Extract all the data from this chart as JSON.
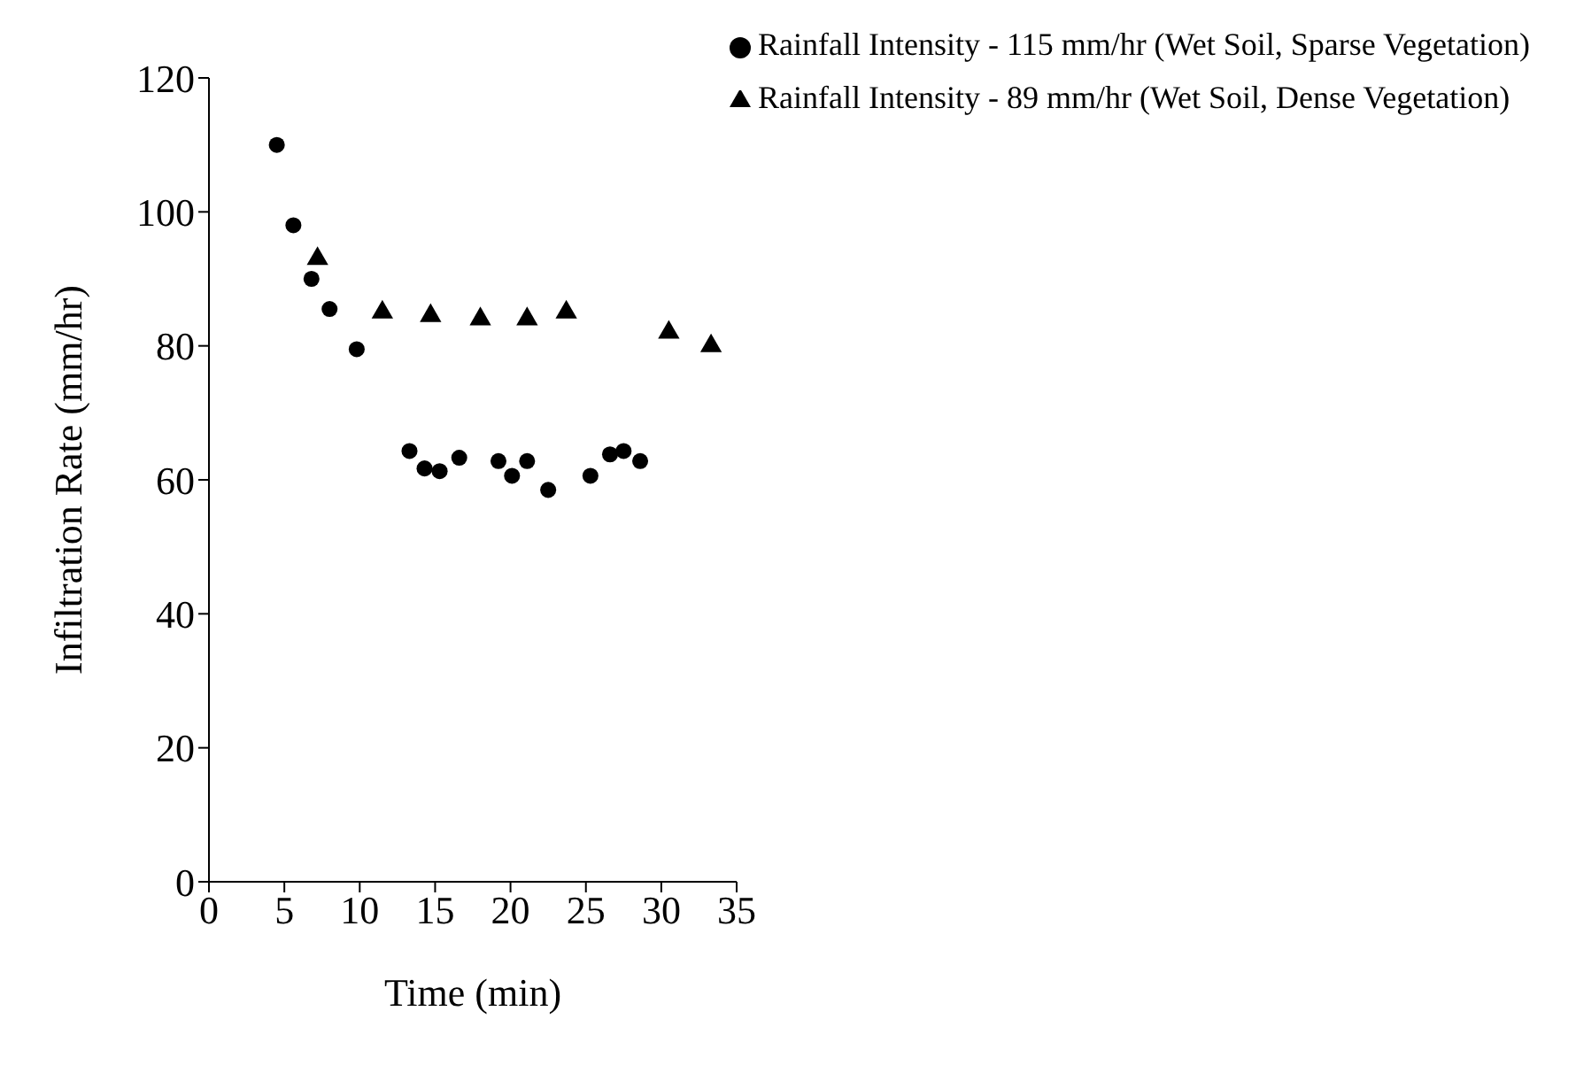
{
  "chart_data": {
    "type": "scatter",
    "xlabel": "Time (min)",
    "ylabel": "Infiltration Rate (mm/hr)",
    "xlim": [
      0,
      35
    ],
    "xticks": [
      0,
      5,
      10,
      15,
      20,
      25,
      30,
      35
    ],
    "ylim": [
      0,
      120
    ],
    "yticks": [
      0,
      20,
      40,
      60,
      80,
      100,
      120
    ],
    "grid": false,
    "legend": "top right",
    "series": [
      {
        "name": "Rainfall Intensity - 89 mm/hr (Wet Soil, Dense Vegetation)",
        "color": "#000000",
        "marker": "triangle",
        "x": [
          7.2,
          11.5,
          14.7,
          18,
          21.1,
          23.7,
          30.5,
          33.3
        ],
        "values": [
          93,
          85,
          84.5,
          84,
          84,
          85,
          82,
          80
        ]
      },
      {
        "name": "Rainfall Intensity - 115 mm/hr (Wet Soil, Sparse Vegetation)",
        "color": "#000000",
        "marker": "circle",
        "x": [
          4.5,
          5.6,
          6.8,
          8,
          9.8,
          13.3,
          14.3,
          15.3,
          16.6,
          19.2,
          20.1,
          21.1,
          22.5,
          25.3,
          26.6,
          27.5,
          28.6
        ],
        "values": [
          110,
          98,
          90,
          85.5,
          79.5,
          64.3,
          61.7,
          61.3,
          63.3,
          62.8,
          60.6,
          62.8,
          58.5,
          60.6,
          63.8,
          64.3,
          62.8
        ]
      }
    ]
  }
}
